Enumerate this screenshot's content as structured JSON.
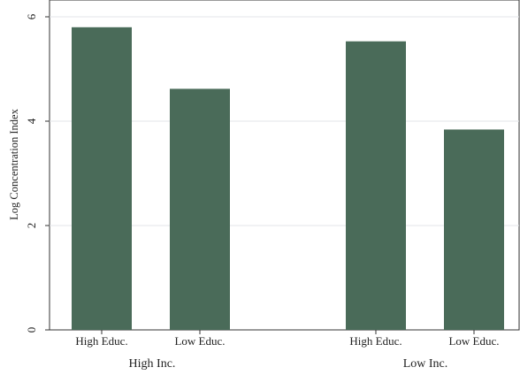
{
  "chart_data": {
    "type": "bar",
    "title": "",
    "ylabel": "Log Concentration Index",
    "xlabel": "",
    "ylim": [
      0,
      6
    ],
    "yticks": [
      0,
      2,
      4,
      6
    ],
    "grid": true,
    "bar_color": "#4a6b59",
    "groups": [
      {
        "label": "High Inc.",
        "bars": [
          {
            "label": "High Educ.",
            "value": 5.8
          },
          {
            "label": "Low Educ.",
            "value": 4.62
          }
        ]
      },
      {
        "label": "Low Inc.",
        "bars": [
          {
            "label": "High Educ.",
            "value": 5.53
          },
          {
            "label": "Low Educ.",
            "value": 3.84
          }
        ]
      }
    ]
  }
}
